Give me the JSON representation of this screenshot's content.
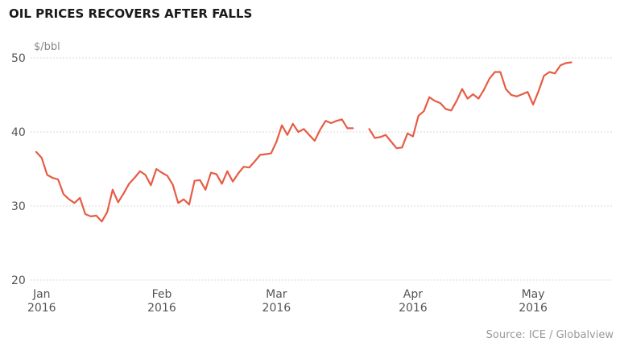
{
  "chart_data": {
    "type": "line",
    "title": "OIL PRICES RECOVERS AFTER FALLS",
    "ylabel": "$/bbl",
    "xlabel": "",
    "ylim": [
      20,
      50
    ],
    "yticks": [
      20,
      30,
      40,
      50
    ],
    "grid": true,
    "xlim": [
      0,
      105
    ],
    "xticks": [
      {
        "x": 1,
        "month": "Jan",
        "year": "2016"
      },
      {
        "x": 23,
        "month": "Feb",
        "year": "2016"
      },
      {
        "x": 44,
        "month": "Mar",
        "year": "2016"
      },
      {
        "x": 69,
        "month": "Apr",
        "year": "2016"
      },
      {
        "x": 91,
        "month": "May",
        "year": "2016"
      }
    ],
    "series": [
      {
        "color": "#e65c45",
        "segments": [
          [
            [
              0,
              37.3
            ],
            [
              1,
              36.5
            ],
            [
              2,
              34.2
            ],
            [
              3,
              33.8
            ],
            [
              4,
              33.6
            ],
            [
              5,
              31.6
            ],
            [
              6,
              30.9
            ],
            [
              7,
              30.4
            ],
            [
              8,
              31.1
            ],
            [
              9,
              28.9
            ],
            [
              10,
              28.6
            ],
            [
              11,
              28.7
            ],
            [
              12,
              27.9
            ],
            [
              13,
              29.2
            ],
            [
              14,
              32.2
            ],
            [
              15,
              30.5
            ],
            [
              16,
              31.7
            ],
            [
              17,
              33.0
            ],
            [
              18,
              33.8
            ],
            [
              19,
              34.7
            ],
            [
              20,
              34.2
            ],
            [
              21,
              32.8
            ],
            [
              22,
              35.0
            ],
            [
              23,
              34.5
            ],
            [
              24,
              34.1
            ],
            [
              25,
              32.9
            ],
            [
              26,
              30.4
            ],
            [
              27,
              30.9
            ],
            [
              28,
              30.2
            ],
            [
              29,
              33.4
            ],
            [
              30,
              33.5
            ],
            [
              31,
              32.2
            ],
            [
              32,
              34.5
            ],
            [
              33,
              34.3
            ],
            [
              34,
              33.0
            ],
            [
              35,
              34.7
            ],
            [
              36,
              33.3
            ],
            [
              37,
              34.4
            ],
            [
              38,
              35.3
            ],
            [
              39,
              35.2
            ],
            [
              40,
              36.0
            ],
            [
              41,
              36.9
            ],
            [
              42,
              37.0
            ],
            [
              43,
              37.1
            ],
            [
              44,
              38.7
            ],
            [
              45,
              40.9
            ],
            [
              46,
              39.6
            ],
            [
              47,
              41.1
            ],
            [
              48,
              40.0
            ],
            [
              49,
              40.4
            ],
            [
              50,
              39.6
            ],
            [
              51,
              38.8
            ],
            [
              52,
              40.3
            ],
            [
              53,
              41.5
            ],
            [
              54,
              41.2
            ],
            [
              55,
              41.5
            ],
            [
              56,
              41.7
            ],
            [
              57,
              40.5
            ],
            [
              58,
              40.5
            ]
          ],
          [
            [
              61,
              40.4
            ],
            [
              62,
              39.2
            ],
            [
              63,
              39.3
            ],
            [
              64,
              39.6
            ],
            [
              65,
              38.7
            ],
            [
              66,
              37.8
            ],
            [
              67,
              37.9
            ],
            [
              68,
              39.8
            ],
            [
              69,
              39.4
            ],
            [
              70,
              42.2
            ],
            [
              71,
              42.8
            ],
            [
              72,
              44.7
            ],
            [
              73,
              44.2
            ],
            [
              74,
              43.9
            ],
            [
              75,
              43.1
            ],
            [
              76,
              42.9
            ],
            [
              77,
              44.2
            ],
            [
              78,
              45.8
            ],
            [
              79,
              44.5
            ],
            [
              80,
              45.1
            ],
            [
              81,
              44.5
            ],
            [
              82,
              45.7
            ],
            [
              83,
              47.2
            ],
            [
              84,
              48.1
            ],
            [
              85,
              48.1
            ],
            [
              86,
              45.8
            ],
            [
              87,
              45.0
            ],
            [
              88,
              44.8
            ],
            [
              89,
              45.1
            ],
            [
              90,
              45.4
            ],
            [
              91,
              43.7
            ],
            [
              92,
              45.5
            ],
            [
              93,
              47.6
            ],
            [
              94,
              48.1
            ],
            [
              95,
              47.9
            ],
            [
              96,
              49.0
            ],
            [
              97,
              49.3
            ],
            [
              98,
              49.4
            ]
          ]
        ]
      }
    ]
  },
  "source": "Source: ICE / Globalview"
}
